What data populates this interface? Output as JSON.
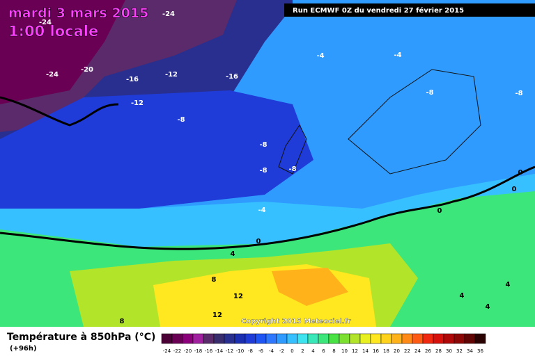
{
  "header": {
    "date": "mardi 3 mars 2015",
    "time": "1:00 locale",
    "run": "Run ECMWF 0Z du vendredi 27 février 2015"
  },
  "copyright": "Copyright 2015 Meteociel.fr",
  "contour_labels": [
    -24,
    -24,
    -24,
    -20,
    -16,
    -12,
    -16,
    -12,
    -8,
    -4,
    -4,
    -8,
    -8,
    -8,
    -8,
    -8,
    -4,
    0,
    0,
    0,
    0,
    4,
    8,
    12,
    12,
    8,
    4,
    4,
    4
  ],
  "legend": {
    "title": "Température à 850hPa (°C)",
    "subtitle": "(+96h)",
    "ticks": [
      -24,
      -22,
      -20,
      -18,
      -16,
      -14,
      -12,
      -10,
      -8,
      -6,
      -4,
      -2,
      0,
      2,
      4,
      6,
      8,
      10,
      12,
      14,
      16,
      18,
      20,
      22,
      24,
      26,
      28,
      30,
      32,
      34,
      36
    ],
    "colors": [
      "#4b0036",
      "#6a0054",
      "#8b007a",
      "#a0209f",
      "#5a2a6a",
      "#3a2d6d",
      "#282f8f",
      "#1c2fb0",
      "#1f3cd8",
      "#1f55f2",
      "#2d78ff",
      "#2f9bff",
      "#37c0ff",
      "#3de4f0",
      "#39e8b8",
      "#3ce67a",
      "#49e244",
      "#7be030",
      "#b2e52a",
      "#e8f020",
      "#ffe81f",
      "#ffd21c",
      "#ffb21a",
      "#ff8a17",
      "#ff5a14",
      "#f02810",
      "#d8100c",
      "#b00808",
      "#8c0606",
      "#600404",
      "#2a0202"
    ]
  }
}
